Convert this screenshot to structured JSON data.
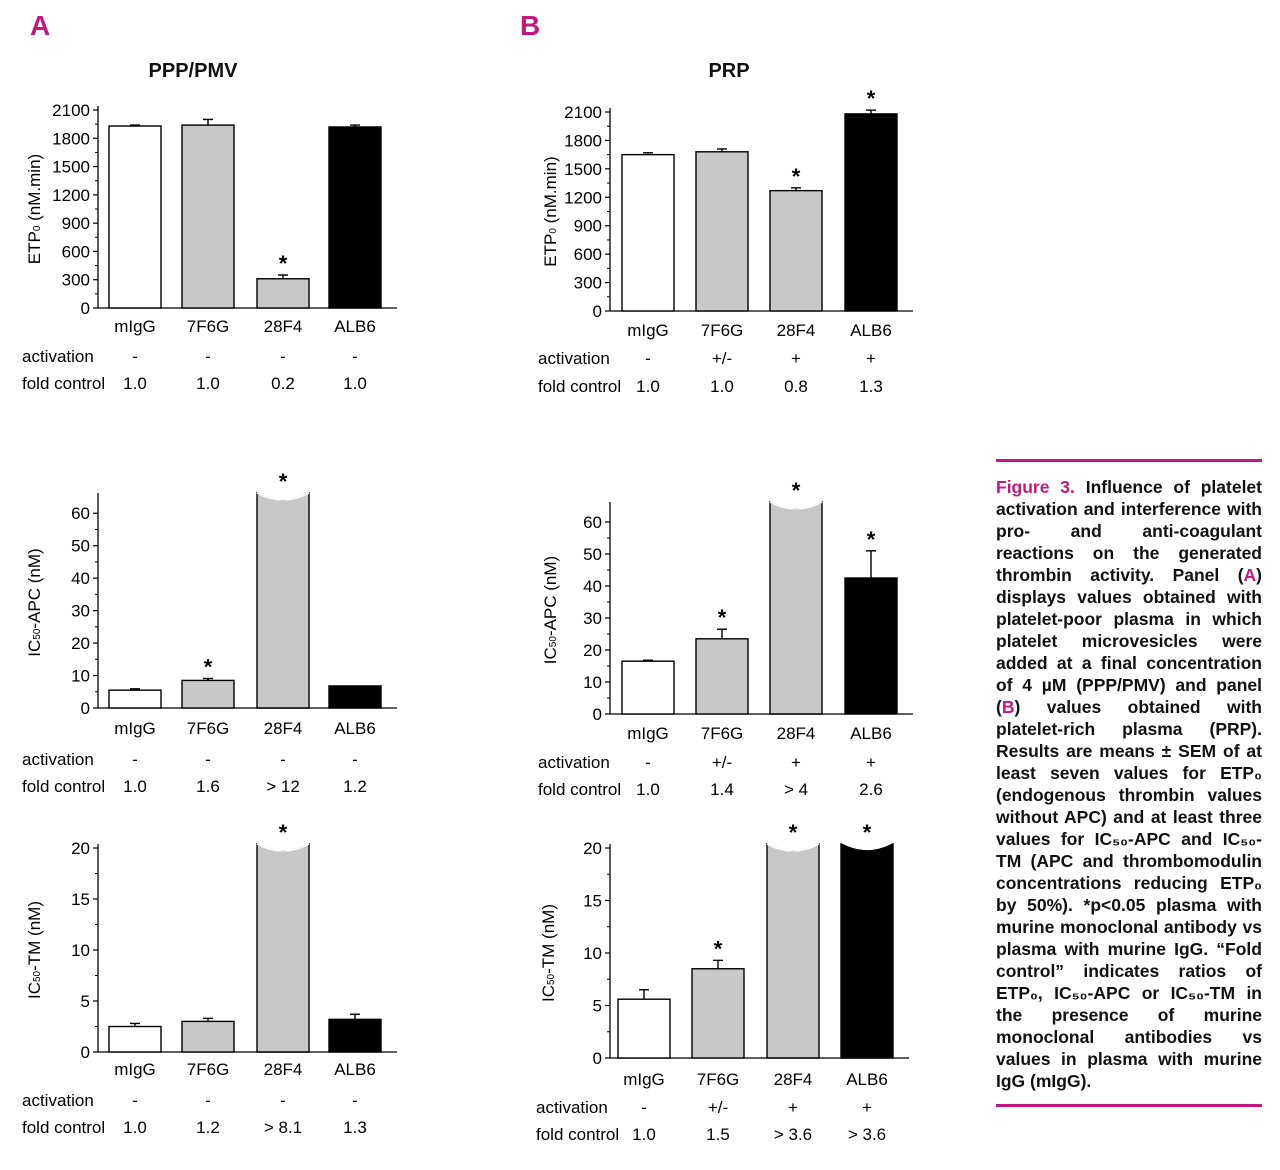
{
  "panel_letters": {
    "a": "A",
    "b": "B"
  },
  "panel_titles": {
    "a": "PPP/PMV",
    "b": "PRP"
  },
  "colors": {
    "accent": "#c2177e",
    "white_bar": "#ffffff",
    "gray_bar": "#c8c8c8",
    "black_bar": "#000000"
  },
  "row_labels": {
    "activation": "activation",
    "fold_control": "fold control"
  },
  "chart_data": [
    {
      "id": "A-ETP",
      "type": "bar",
      "panel": "A",
      "categories": [
        "mIgG",
        "7F6G",
        "28F4",
        "ALB6"
      ],
      "values": [
        1930,
        1940,
        310,
        1920
      ],
      "errors": [
        10,
        60,
        40,
        20
      ],
      "fills": [
        "white",
        "gray",
        "gray",
        "black"
      ],
      "significant": [
        false,
        false,
        true,
        false
      ],
      "clipped": [
        false,
        false,
        false,
        false
      ],
      "ylabel_main": "ETP",
      "ylabel_sub": "0",
      "ylabel_tail": " (nM.min)",
      "ylim": [
        0,
        2100
      ],
      "yticks": [
        "0",
        "300",
        "600",
        "900",
        "1200",
        "1500",
        "1800",
        "2100"
      ],
      "activation": [
        "-",
        "-",
        "-",
        "-"
      ],
      "fold_control": [
        "1.0",
        "1.0",
        "0.2",
        "1.0"
      ]
    },
    {
      "id": "A-APC",
      "type": "bar",
      "panel": "A",
      "categories": [
        "mIgG",
        "7F6G",
        "28F4",
        "ALB6"
      ],
      "values": [
        5.5,
        8.5,
        65,
        6.8
      ],
      "errors": [
        0.4,
        0.6,
        0,
        0
      ],
      "fills": [
        "white",
        "gray",
        "gray",
        "black"
      ],
      "significant": [
        false,
        true,
        true,
        false
      ],
      "clipped": [
        false,
        false,
        true,
        false
      ],
      "ylabel_main": "IC",
      "ylabel_sub": "50",
      "ylabel_tail": "-APC (nM)",
      "ylim": [
        0,
        65
      ],
      "yticks": [
        "0",
        "10",
        "20",
        "30",
        "40",
        "50",
        "60"
      ],
      "activation": [
        "-",
        "-",
        "-",
        "-"
      ],
      "fold_control": [
        "1.0",
        "1.6",
        "> 12",
        "1.2"
      ]
    },
    {
      "id": "A-TM",
      "type": "bar",
      "panel": "A",
      "categories": [
        "mIgG",
        "7F6G",
        "28F4",
        "ALB6"
      ],
      "values": [
        2.5,
        3.0,
        20,
        3.2
      ],
      "errors": [
        0.3,
        0.3,
        0,
        0.5
      ],
      "fills": [
        "white",
        "gray",
        "gray",
        "black"
      ],
      "significant": [
        false,
        false,
        true,
        false
      ],
      "clipped": [
        false,
        false,
        true,
        false
      ],
      "ylabel_main": "IC",
      "ylabel_sub": "50",
      "ylabel_tail": "-TM (nM)",
      "ylim": [
        0,
        20
      ],
      "yticks": [
        "0",
        "5",
        "10",
        "15",
        "20"
      ],
      "activation": [
        "-",
        "-",
        "-",
        "-"
      ],
      "fold_control": [
        "1.0",
        "1.2",
        "> 8.1",
        "1.3"
      ]
    },
    {
      "id": "B-ETP",
      "type": "bar",
      "panel": "B",
      "categories": [
        "mIgG",
        "7F6G",
        "28F4",
        "ALB6"
      ],
      "values": [
        1650,
        1680,
        1270,
        2080
      ],
      "errors": [
        20,
        30,
        30,
        40
      ],
      "fills": [
        "white",
        "gray",
        "gray",
        "black"
      ],
      "significant": [
        false,
        false,
        true,
        true
      ],
      "clipped": [
        false,
        false,
        false,
        false
      ],
      "ylabel_main": "ETP",
      "ylabel_sub": "0",
      "ylabel_tail": " (nM.min)",
      "ylim": [
        0,
        2100
      ],
      "yticks": [
        "0",
        "300",
        "600",
        "900",
        "1200",
        "1500",
        "1800",
        "2100"
      ],
      "activation": [
        "-",
        "+/-",
        "+",
        "+"
      ],
      "fold_control": [
        "1.0",
        "1.0",
        "0.8",
        "1.3"
      ]
    },
    {
      "id": "B-APC",
      "type": "bar",
      "panel": "B",
      "categories": [
        "mIgG",
        "7F6G",
        "28F4",
        "ALB6"
      ],
      "values": [
        16.5,
        23.5,
        65,
        42.5
      ],
      "errors": [
        0.3,
        3,
        0,
        8.5
      ],
      "fills": [
        "white",
        "gray",
        "gray",
        "black"
      ],
      "significant": [
        false,
        true,
        true,
        true
      ],
      "clipped": [
        false,
        false,
        true,
        false
      ],
      "ylabel_main": "IC",
      "ylabel_sub": "50",
      "ylabel_tail": "-APC (nM)",
      "ylim": [
        0,
        65
      ],
      "yticks": [
        "0",
        "10",
        "20",
        "30",
        "40",
        "50",
        "60"
      ],
      "activation": [
        "-",
        "+/-",
        "+",
        "+"
      ],
      "fold_control": [
        "1.0",
        "1.4",
        "> 4",
        "2.6"
      ]
    },
    {
      "id": "B-TM",
      "type": "bar",
      "panel": "B",
      "categories": [
        "mIgG",
        "7F6G",
        "28F4",
        "ALB6"
      ],
      "values": [
        5.6,
        8.5,
        20,
        20
      ],
      "errors": [
        0.9,
        0.8,
        0,
        0
      ],
      "fills": [
        "white",
        "gray",
        "gray",
        "black"
      ],
      "significant": [
        false,
        true,
        true,
        true
      ],
      "clipped": [
        false,
        false,
        true,
        true
      ],
      "ylabel_main": "IC",
      "ylabel_sub": "50",
      "ylabel_tail": "-TM (nM)",
      "ylim": [
        0,
        20
      ],
      "yticks": [
        "0",
        "5",
        "10",
        "15",
        "20"
      ],
      "activation": [
        "-",
        "+/-",
        "+",
        "+"
      ],
      "fold_control": [
        "1.0",
        "1.5",
        "> 3.6",
        "> 3.6"
      ]
    }
  ],
  "caption": {
    "lead": "Figure 3.",
    "t1": " Influence of platelet activation and interference with pro- and anti-coagulant reactions on the generated thrombin activity. Panel (",
    "a": "A",
    "t2": ") displays values obtained with platelet-poor plasma in which platelet microvesicles were added at a final concentration of 4 µM (PPP/PMV) and panel (",
    "b": "B",
    "t3": ") values obtained with platelet-rich plasma (PRP). Results are means ± SEM of at least seven values for ETP₀ (endogenous thrombin values without APC) and at least three values for IC₅₀-APC and IC₅₀-TM (APC and thrombomodulin concentrations reducing ETP₀ by 50%). *p<0.05 plasma with murine monoclonal antibody vs plasma with murine IgG. “Fold control” indicates ratios of ETP₀, IC₅₀-APC or IC₅₀-TM in the presence of murine monoclonal antibodies vs values in plasma with murine IgG (mIgG)."
  }
}
